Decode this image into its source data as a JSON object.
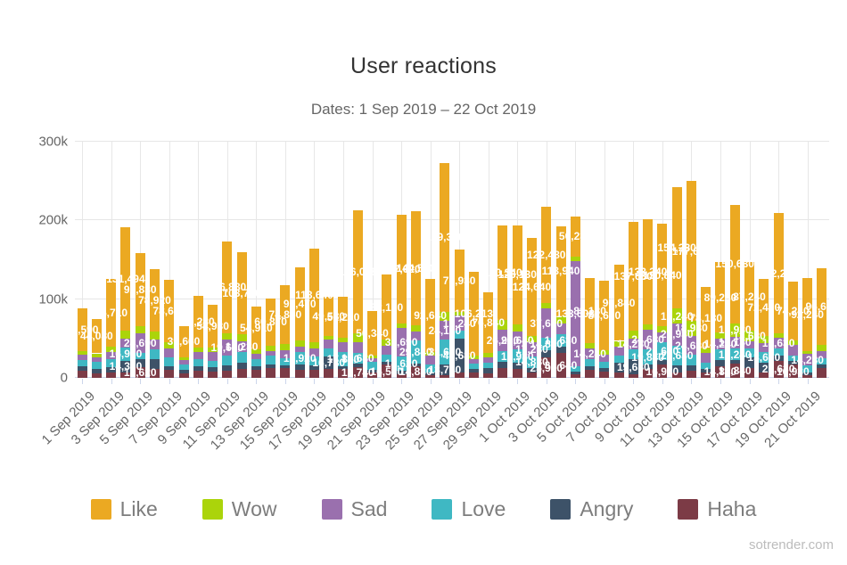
{
  "title": "User reactions",
  "subtitle": "Dates: 1 Sep 2019 – 22 Oct 2019",
  "watermark": "sotrender.com",
  "chart_data": {
    "type": "bar",
    "stacked": true,
    "title": "User reactions",
    "subtitle": "Dates: 1 Sep 2019 – 22 Oct 2019",
    "grid": true,
    "legend_position": "bottom",
    "legend": [
      "Like",
      "Wow",
      "Sad",
      "Love",
      "Angry",
      "Haha"
    ],
    "ylim": [
      0,
      300000
    ],
    "yticks": [
      {
        "value": 0,
        "label": "0"
      },
      {
        "value": 100000,
        "label": "100k"
      },
      {
        "value": 200000,
        "label": "200k"
      },
      {
        "value": 300000,
        "label": "300k"
      }
    ],
    "x_label_every": 2,
    "categories": [
      "1 Sep 2019",
      "2 Sep 2019",
      "3 Sep 2019",
      "4 Sep 2019",
      "5 Sep 2019",
      "6 Sep 2019",
      "7 Sep 2019",
      "8 Sep 2019",
      "9 Sep 2019",
      "10 Sep 2019",
      "11 Sep 2019",
      "12 Sep 2019",
      "13 Sep 2019",
      "14 Sep 2019",
      "15 Sep 2019",
      "16 Sep 2019",
      "17 Sep 2019",
      "18 Sep 2019",
      "19 Sep 2019",
      "20 Sep 2019",
      "21 Sep 2019",
      "22 Sep 2019",
      "23 Sep 2019",
      "24 Sep 2019",
      "25 Sep 2019",
      "26 Sep 2019",
      "27 Sep 2019",
      "28 Sep 2019",
      "29 Sep 2019",
      "30 Sep 2019",
      "1 Oct 2019",
      "2 Oct 2019",
      "3 Oct 2019",
      "4 Oct 2019",
      "5 Oct 2019",
      "6 Oct 2019",
      "7 Oct 2019",
      "8 Oct 2019",
      "9 Oct 2019",
      "10 Oct 2019",
      "11 Oct 2019",
      "12 Oct 2019",
      "13 Oct 2019",
      "14 Oct 2019",
      "15 Oct 2019",
      "16 Oct 2019",
      "17 Oct 2019",
      "18 Oct 2019",
      "19 Oct 2019",
      "20 Oct 2019",
      "21 Oct 2019",
      "22 Oct 2019"
    ],
    "series": [
      {
        "name": "Haha",
        "color": "#7c3b46",
        "values": [
          8930,
          6210,
          7340,
          7280,
          13620,
          11850,
          9710,
          5630,
          8920,
          7850,
          9240,
          11630,
          9820,
          12740,
          11920,
          10640,
          9730,
          10920,
          11630,
          13740,
          6830,
          16530,
          4930,
          14830,
          3840,
          2930,
          6240,
          6930,
          6130,
          12840,
          11240,
          6430,
          25930,
          31640,
          4230,
          9630,
          8240,
          6930,
          4240,
          11230,
          16930,
          6240,
          9240,
          6240,
          14830,
          17840,
          12930,
          7240,
          21630,
          16930,
          3430,
          12240
        ]
      },
      {
        "name": "Angry",
        "color": "#3d5268",
        "values": [
          5720,
          4830,
          6180,
          14360,
          9840,
          11630,
          5480,
          4210,
          5740,
          5230,
          6830,
          7920,
          5140,
          4280,
          4370,
          5830,
          6240,
          16730,
          3420,
          4120,
          3740,
          3920,
          3840,
          3240,
          3120,
          13740,
          43680,
          4820,
          5840,
          7630,
          7840,
          6240,
          9640,
          8240,
          4130,
          4820,
          4380,
          12240,
          19630,
          5240,
          6240,
          9240,
          6430,
          4830,
          8240,
          4240,
          12630,
          11930,
          6240,
          4240,
          3240,
          4240
        ]
      },
      {
        "name": "Love",
        "color": "#3fb8c3",
        "values": [
          8160,
          9460,
          10240,
          16930,
          8310,
          12740,
          11260,
          6840,
          9630,
          8940,
          12420,
          12840,
          8260,
          10930,
          8240,
          15920,
          11430,
          9640,
          17850,
          13680,
          9630,
          8740,
          18620,
          29840,
          10240,
          31620,
          9830,
          6240,
          7240,
          13240,
          16930,
          14830,
          14830,
          15630,
          6240,
          8930,
          7430,
          8930,
          12240,
          19840,
          21630,
          25630,
          13240,
          8240,
          12640,
          15240,
          11240,
          13630,
          8930,
          7630,
          9240,
          8930
        ]
      },
      {
        "name": "Sad",
        "color": "#9a70ae",
        "values": [
          6540,
          5920,
          8820,
          11240,
          24690,
          12380,
          10930,
          5470,
          8240,
          10620,
          19660,
          14230,
          7430,
          6120,
          11060,
          7240,
          9820,
          11240,
          12630,
          13240,
          4210,
          11230,
          35690,
          11230,
          11430,
          24130,
          19240,
          5430,
          6930,
          26930,
          22640,
          17230,
          37690,
          13240,
          133608,
          14240,
          9240,
          11630,
          14230,
          24630,
          13240,
          27930,
          24630,
          12630,
          14240,
          15130,
          9430,
          11630,
          13630,
          13240,
          14230,
          8430
        ]
      },
      {
        "name": "Wow",
        "color": "#abd40a",
        "values": [
          5130,
          4710,
          6960,
          10580,
          9120,
          10640,
          8340,
          4180,
          6120,
          5380,
          8470,
          9340,
          5270,
          6340,
          7630,
          8120,
          8430,
          5180,
          5840,
          11630,
          4380,
          8240,
          6240,
          8120,
          4120,
          11240,
          5120,
          4730,
          5630,
          13120,
          9240,
          8420,
          7240,
          9840,
          6130,
          6240,
          5430,
          7240,
          9840,
          7430,
          7240,
          19240,
          18930,
          5240,
          7630,
          16930,
          13630,
          8240,
          6240,
          5840,
          4240,
          8240
        ]
      },
      {
        "name": "Like",
        "color": "#eba922",
        "values": [
          53590,
          44080,
          85710,
          131494,
          92830,
          78920,
          78640,
          39660,
          65280,
          54930,
          116880,
          103740,
          54910,
          60870,
          74850,
          92470,
          118640,
          49530,
          51210,
          156028,
          56340,
          82120,
          137620,
          144560,
          92640,
          189320,
          78930,
          106213,
          76840,
          120340,
          126130,
          124640,
          122480,
          113940,
          50230,
          83130,
          88630,
          96840,
          137630,
          133240,
          130840,
          154230,
          177630,
          78130,
          89230,
          150630,
          87240,
          72430,
          152230,
          74240,
          92240,
          96630
        ]
      }
    ]
  }
}
